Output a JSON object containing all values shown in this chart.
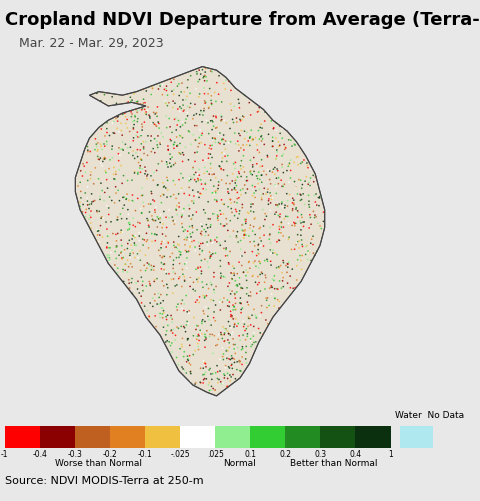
{
  "title": "Cropland NDVI Departure from Average (Terra-MODIS)",
  "subtitle": "Mar. 22 - Mar. 29, 2023",
  "source_text": "Source: NDVI MODIS-Terra at 250-m",
  "colorbar_values": [
    -1,
    -0.4,
    -0.3,
    -0.2,
    -0.1,
    -0.025,
    0.025,
    0.1,
    0.2,
    0.3,
    0.4,
    1
  ],
  "colorbar_colors": [
    "#FF0000",
    "#8B0000",
    "#C06020",
    "#E08020",
    "#F0C040",
    "#FFFFFF",
    "#90EE90",
    "#32CD32",
    "#228B22",
    "#145214",
    "#0A3010"
  ],
  "water_color": "#B0E8F0",
  "nodata_color": "#E8E8E8",
  "tick_labels": [
    "-1",
    "-0.4",
    "-0.3",
    "-0.2",
    "-0.1",
    "-.025",
    ".025",
    "0.1",
    "0.2",
    "0.3",
    "0.4",
    "1"
  ],
  "worse_label": "Worse than Normal",
  "normal_label": "Normal",
  "better_label": "Better than Normal",
  "map_bg_color": "#C8F0F8",
  "fig_bg_color": "#E8E8E8",
  "title_fontsize": 13,
  "subtitle_fontsize": 9,
  "source_fontsize": 8,
  "color_weights": [
    0.12,
    0.08,
    0.08,
    0.09,
    0.08,
    0.05,
    0.08,
    0.1,
    0.12,
    0.08,
    0.12
  ]
}
